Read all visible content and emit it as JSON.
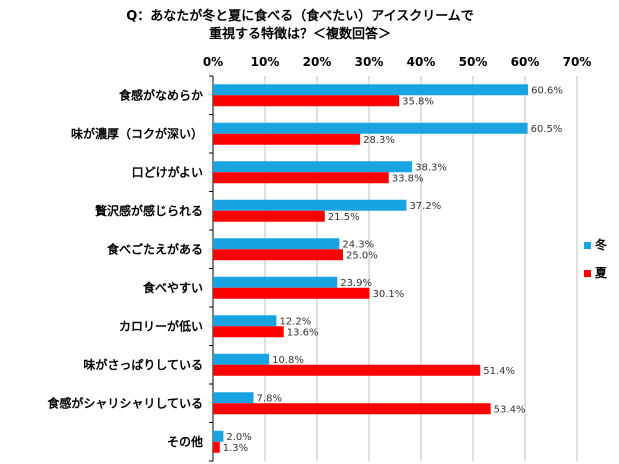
{
  "chart_data": {
    "type": "bar",
    "orientation": "horizontal",
    "title": [
      "Q：あなたが冬と夏に食べる（食べたい）アイスクリームで",
      "重視する特徴は？＜複数回答＞"
    ],
    "categories": [
      "食感がなめらか",
      "味が濃厚（コクが深い）",
      "口どけがよい",
      "贅沢感が感じられる",
      "食べごたえがある",
      "食べやすい",
      "カロリーが低い",
      "味がさっぱりしている",
      "食感がシャリシャリしている",
      "その他"
    ],
    "series": [
      {
        "name": "冬",
        "color": "#19A3E0",
        "values": [
          60.6,
          60.5,
          38.3,
          37.2,
          24.3,
          23.9,
          12.2,
          10.8,
          7.8,
          2.0
        ],
        "labels": [
          "60.6%",
          "60.5%",
          "38.3%",
          "37.2%",
          "24.3%",
          "23.9%",
          "12.2%",
          "10.8%",
          "7.8%",
          "2.0%"
        ]
      },
      {
        "name": "夏",
        "color": "#FF0000",
        "values": [
          35.8,
          28.3,
          33.8,
          21.5,
          25.0,
          30.1,
          13.6,
          51.4,
          53.4,
          1.3
        ],
        "labels": [
          "35.8%",
          "28.3%",
          "33.8%",
          "21.5%",
          "25.0%",
          "30.1%",
          "13.6%",
          "51.4%",
          "53.4%",
          "1.3%"
        ]
      }
    ],
    "xlim": [
      0,
      70
    ],
    "xticks": [
      "0%",
      "10%",
      "20%",
      "30%",
      "40%",
      "50%",
      "60%",
      "70%"
    ],
    "grid": true,
    "legend_position": "right"
  }
}
